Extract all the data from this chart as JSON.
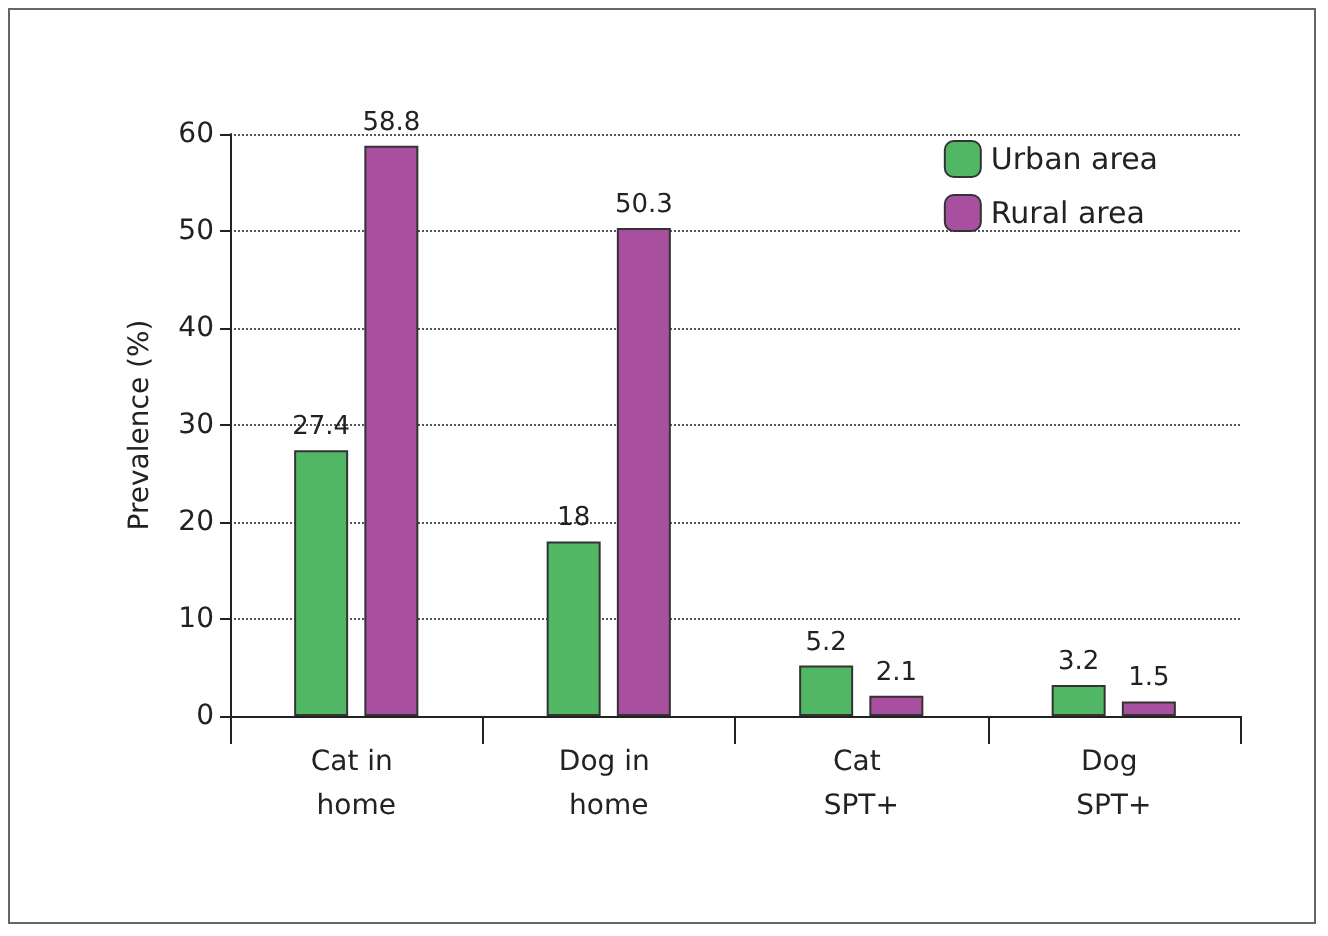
{
  "chart_data": {
    "type": "bar",
    "ylabel": "Prevalence (%)",
    "categories": [
      "Cat in home",
      "Dog in home",
      "Cat SPT+",
      "Dog SPT+"
    ],
    "series": [
      {
        "name": "Urban area",
        "color": "#52b764",
        "values": [
          27.4,
          18,
          5.2,
          3.2
        ]
      },
      {
        "name": "Rural area",
        "color": "#a94f9f",
        "values": [
          58.8,
          50.3,
          2.1,
          1.5
        ]
      }
    ],
    "ylim": [
      0,
      60
    ],
    "yticks": [
      0,
      10,
      20,
      30,
      40,
      50,
      60
    ],
    "grid": "y",
    "legend": "top right",
    "data_labels": true
  }
}
